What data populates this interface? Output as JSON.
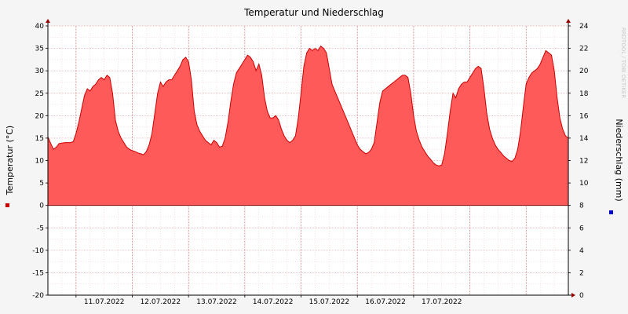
{
  "chart_data": {
    "type": "area",
    "title": "Temperatur und Niederschlag",
    "ylabel": "Temperatur (°C)",
    "y2label": "Niederschlag (mm)",
    "watermark": "RRDTOOL / TOBI OETIKER",
    "ylim": [
      -20,
      40
    ],
    "y_ticks": [
      40,
      35,
      30,
      25,
      20,
      15,
      10,
      5,
      0,
      -5,
      -10,
      -15,
      -20
    ],
    "y2lim": [
      0,
      24
    ],
    "y2_ticks": [
      24,
      22,
      20,
      18,
      16,
      14,
      12,
      10,
      8,
      6,
      4,
      2,
      0
    ],
    "x_labels": [
      "11.07.2022",
      "12.07.2022",
      "13.07.2022",
      "14.07.2022",
      "15.07.2022",
      "16.07.2022",
      "17.07.2022"
    ],
    "grid": true,
    "legend": "left and right markers",
    "colors": {
      "temperature_fill": "#ff5a5a",
      "temperature_line": "#cc0000",
      "precipitation": "#0000cc",
      "grid": "#e0a0a0",
      "axis": "#000000",
      "background": "#f5f5f5",
      "plot_background": "#ffffff"
    },
    "series": [
      {
        "name": "Temperatur",
        "x_unit": "days since 11.07.2022 00:00",
        "points": [
          [
            -0.5,
            15.3
          ],
          [
            -0.45,
            13.8
          ],
          [
            -0.4,
            12.5
          ],
          [
            -0.35,
            13.0
          ],
          [
            -0.3,
            13.8
          ],
          [
            -0.2,
            14.0
          ],
          [
            -0.1,
            14.0
          ],
          [
            -0.05,
            14.2
          ],
          [
            0.0,
            16.0
          ],
          [
            0.05,
            18.5
          ],
          [
            0.1,
            21.5
          ],
          [
            0.15,
            24.5
          ],
          [
            0.2,
            26.0
          ],
          [
            0.25,
            25.5
          ],
          [
            0.3,
            26.5
          ],
          [
            0.35,
            27.0
          ],
          [
            0.4,
            28.0
          ],
          [
            0.45,
            28.5
          ],
          [
            0.5,
            28.0
          ],
          [
            0.55,
            29.0
          ],
          [
            0.6,
            28.5
          ],
          [
            0.65,
            25.0
          ],
          [
            0.7,
            19.0
          ],
          [
            0.75,
            16.5
          ],
          [
            0.8,
            15.0
          ],
          [
            0.85,
            14.0
          ],
          [
            0.9,
            13.0
          ],
          [
            0.95,
            12.5
          ],
          [
            1.0,
            12.2
          ],
          [
            1.05,
            12.0
          ],
          [
            1.1,
            11.7
          ],
          [
            1.15,
            11.5
          ],
          [
            1.2,
            11.3
          ],
          [
            1.25,
            12.0
          ],
          [
            1.3,
            13.5
          ],
          [
            1.35,
            16.0
          ],
          [
            1.4,
            20.5
          ],
          [
            1.45,
            25.0
          ],
          [
            1.5,
            27.5
          ],
          [
            1.55,
            26.5
          ],
          [
            1.6,
            27.5
          ],
          [
            1.65,
            28.0
          ],
          [
            1.7,
            28.0
          ],
          [
            1.75,
            29.0
          ],
          [
            1.8,
            30.0
          ],
          [
            1.85,
            31.0
          ],
          [
            1.9,
            32.5
          ],
          [
            1.95,
            33.0
          ],
          [
            2.0,
            32.0
          ],
          [
            2.05,
            28.0
          ],
          [
            2.1,
            21.0
          ],
          [
            2.15,
            18.0
          ],
          [
            2.2,
            16.5
          ],
          [
            2.25,
            15.5
          ],
          [
            2.3,
            14.5
          ],
          [
            2.35,
            14.0
          ],
          [
            2.4,
            13.5
          ],
          [
            2.45,
            14.5
          ],
          [
            2.5,
            14.0
          ],
          [
            2.55,
            13.0
          ],
          [
            2.6,
            13.2
          ],
          [
            2.65,
            15.0
          ],
          [
            2.7,
            18.5
          ],
          [
            2.75,
            23.0
          ],
          [
            2.8,
            27.0
          ],
          [
            2.85,
            29.5
          ],
          [
            2.9,
            30.5
          ],
          [
            2.95,
            31.5
          ],
          [
            3.0,
            32.5
          ],
          [
            3.05,
            33.5
          ],
          [
            3.1,
            33.0
          ],
          [
            3.15,
            32.0
          ],
          [
            3.2,
            30.0
          ],
          [
            3.25,
            31.5
          ],
          [
            3.3,
            29.0
          ],
          [
            3.35,
            24.0
          ],
          [
            3.4,
            21.0
          ],
          [
            3.45,
            19.5
          ],
          [
            3.5,
            19.5
          ],
          [
            3.55,
            20.0
          ],
          [
            3.6,
            19.0
          ],
          [
            3.65,
            17.0
          ],
          [
            3.7,
            15.5
          ],
          [
            3.75,
            14.5
          ],
          [
            3.8,
            14.0
          ],
          [
            3.85,
            14.5
          ],
          [
            3.9,
            15.5
          ],
          [
            3.95,
            19.5
          ],
          [
            4.0,
            25.0
          ],
          [
            4.05,
            31.0
          ],
          [
            4.1,
            34.0
          ],
          [
            4.15,
            35.0
          ],
          [
            4.2,
            34.5
          ],
          [
            4.25,
            35.0
          ],
          [
            4.3,
            34.5
          ],
          [
            4.35,
            35.5
          ],
          [
            4.4,
            35.0
          ],
          [
            4.45,
            34.0
          ],
          [
            4.5,
            30.5
          ],
          [
            4.55,
            27.0
          ],
          [
            4.6,
            25.5
          ],
          [
            4.65,
            24.0
          ],
          [
            4.7,
            22.5
          ],
          [
            4.75,
            21.0
          ],
          [
            4.8,
            19.5
          ],
          [
            4.85,
            18.0
          ],
          [
            4.9,
            16.5
          ],
          [
            4.95,
            15.0
          ],
          [
            5.0,
            13.5
          ],
          [
            5.05,
            12.5
          ],
          [
            5.1,
            12.0
          ],
          [
            5.15,
            11.5
          ],
          [
            5.2,
            11.8
          ],
          [
            5.25,
            12.5
          ],
          [
            5.3,
            14.0
          ],
          [
            5.35,
            18.5
          ],
          [
            5.4,
            23.0
          ],
          [
            5.45,
            25.5
          ],
          [
            5.5,
            26.0
          ],
          [
            5.55,
            26.5
          ],
          [
            5.6,
            27.0
          ],
          [
            5.65,
            27.5
          ],
          [
            5.7,
            28.0
          ],
          [
            5.75,
            28.5
          ],
          [
            5.8,
            29.0
          ],
          [
            5.85,
            29.0
          ],
          [
            5.9,
            28.5
          ],
          [
            5.95,
            25.0
          ],
          [
            6.0,
            20.0
          ],
          [
            6.05,
            16.5
          ],
          [
            6.1,
            14.5
          ],
          [
            6.15,
            13.0
          ],
          [
            6.2,
            12.0
          ],
          [
            6.25,
            11.0
          ],
          [
            6.3,
            10.3
          ],
          [
            6.35,
            9.5
          ],
          [
            6.4,
            9.0
          ],
          [
            6.45,
            8.8
          ],
          [
            6.5,
            9.0
          ],
          [
            6.55,
            11.5
          ],
          [
            6.6,
            16.0
          ],
          [
            6.65,
            21.0
          ],
          [
            6.7,
            25.0
          ],
          [
            6.75,
            24.0
          ],
          [
            6.8,
            26.0
          ],
          [
            6.85,
            27.0
          ],
          [
            6.9,
            27.5
          ],
          [
            6.95,
            27.5
          ],
          [
            7.0,
            28.5
          ],
          [
            7.05,
            29.5
          ],
          [
            7.1,
            30.5
          ],
          [
            7.15,
            31.0
          ],
          [
            7.2,
            30.5
          ],
          [
            7.25,
            26.0
          ],
          [
            7.3,
            20.5
          ],
          [
            7.35,
            17.0
          ],
          [
            7.4,
            15.0
          ],
          [
            7.45,
            13.5
          ],
          [
            7.5,
            12.5
          ],
          [
            7.55,
            11.8
          ],
          [
            7.6,
            11.0
          ],
          [
            7.65,
            10.5
          ],
          [
            7.7,
            10.0
          ],
          [
            7.75,
            9.8
          ],
          [
            7.8,
            10.5
          ],
          [
            7.85,
            12.5
          ],
          [
            7.9,
            16.5
          ],
          [
            7.95,
            22.0
          ],
          [
            8.0,
            27.0
          ],
          [
            8.05,
            28.5
          ],
          [
            8.1,
            29.5
          ],
          [
            8.15,
            30.0
          ],
          [
            8.2,
            30.5
          ],
          [
            8.25,
            31.5
          ],
          [
            8.3,
            33.0
          ],
          [
            8.35,
            34.5
          ],
          [
            8.4,
            34.0
          ],
          [
            8.45,
            33.5
          ],
          [
            8.5,
            30.0
          ],
          [
            8.55,
            24.0
          ],
          [
            8.6,
            19.5
          ],
          [
            8.65,
            17.0
          ],
          [
            8.7,
            15.5
          ],
          [
            8.75,
            15.0
          ]
        ]
      },
      {
        "name": "Niederschlag",
        "points": []
      }
    ]
  }
}
